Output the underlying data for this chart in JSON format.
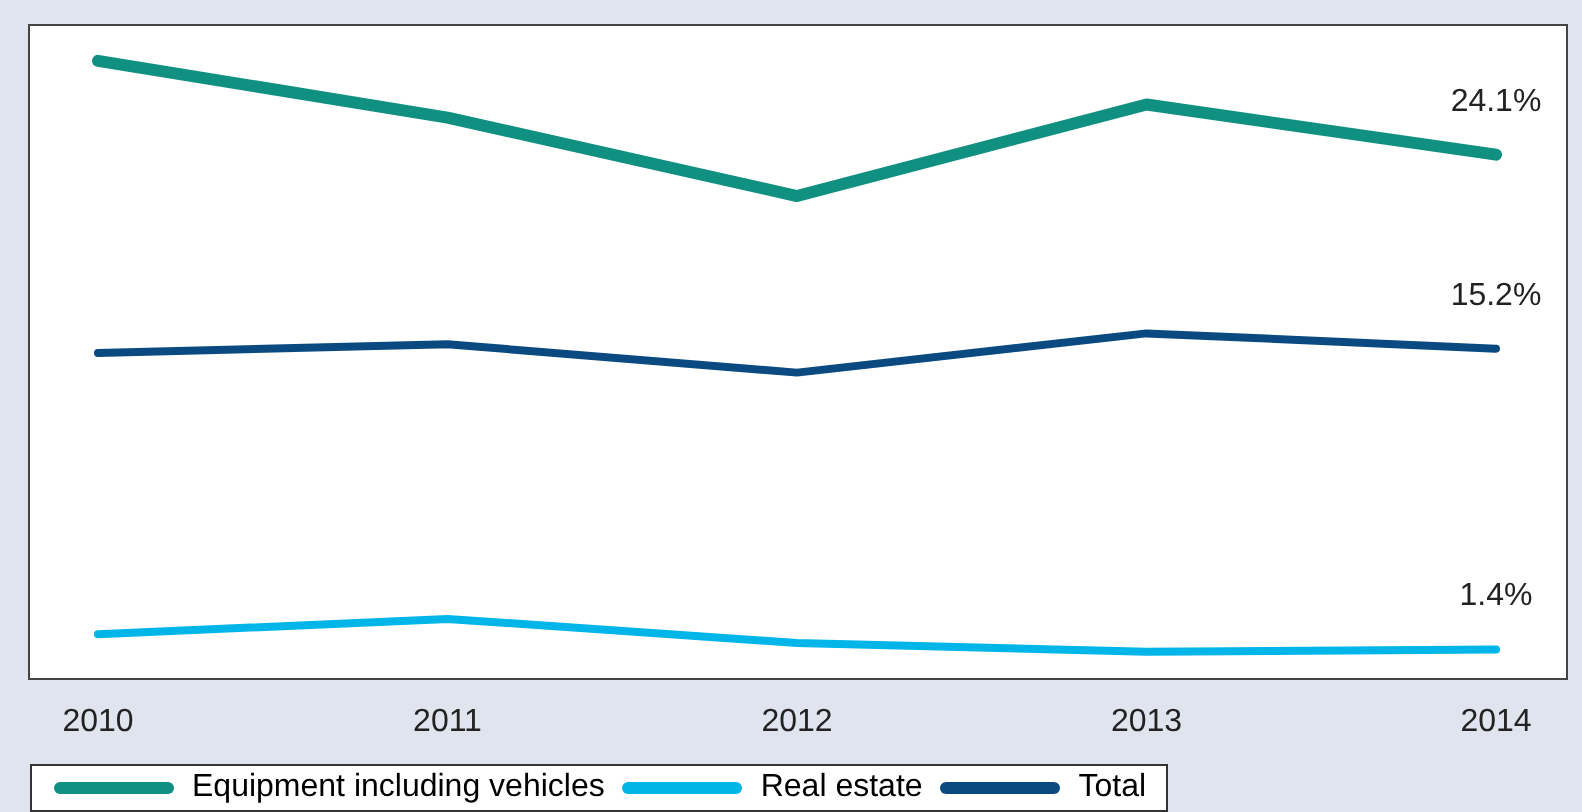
{
  "chart_data": {
    "type": "line",
    "categories": [
      "2010",
      "2011",
      "2012",
      "2013",
      "2014"
    ],
    "series": [
      {
        "name": "Equipment including vehicles",
        "color": "#0f9080",
        "values": [
          28.4,
          25.8,
          22.2,
          26.4,
          24.1
        ],
        "value_labels": [
          null,
          null,
          null,
          null,
          "24.1%"
        ]
      },
      {
        "name": "Real estate",
        "color": "#00b5e8",
        "values": [
          2.1,
          2.8,
          1.7,
          1.3,
          1.4
        ],
        "value_labels": [
          null,
          null,
          null,
          null,
          "1.4%"
        ]
      },
      {
        "name": "Total",
        "color": "#0a4a80",
        "values": [
          15.0,
          15.4,
          14.1,
          15.9,
          15.2
        ],
        "value_labels": [
          null,
          null,
          null,
          null,
          "15.2%"
        ]
      }
    ],
    "ylim": [
      0,
      30
    ],
    "tick_labels": "x",
    "grid": false,
    "legend": "bottom",
    "marker": "none",
    "line_style": "solid"
  }
}
